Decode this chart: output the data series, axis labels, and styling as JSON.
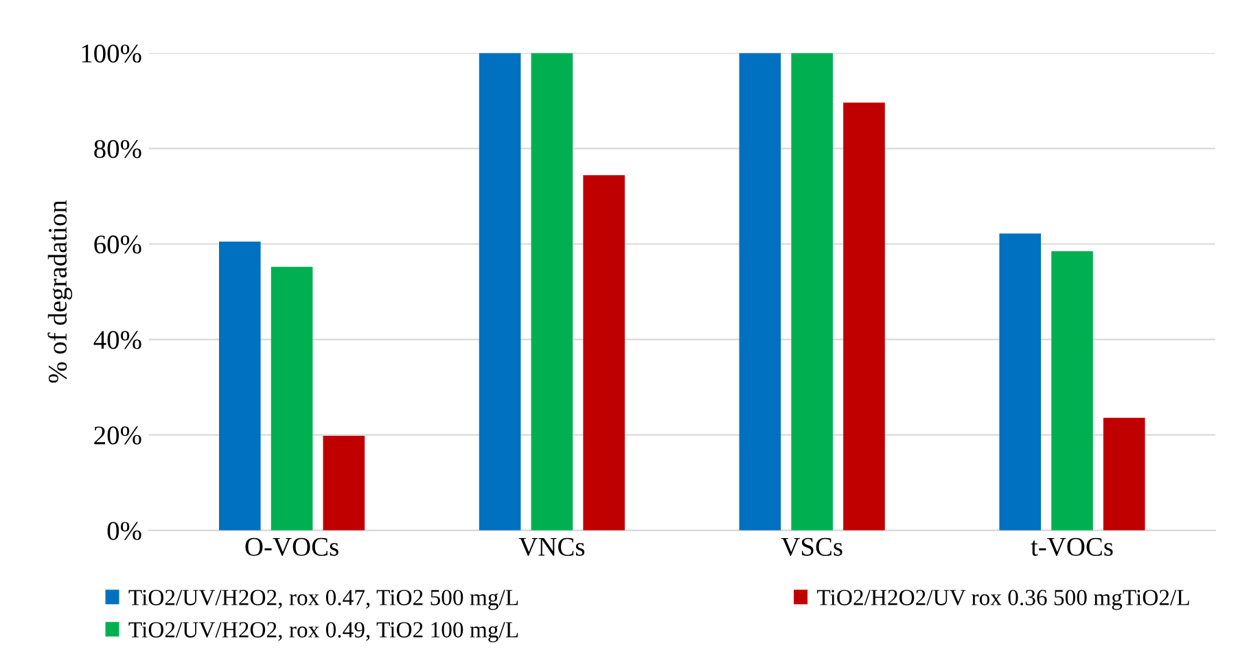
{
  "chart_data": {
    "type": "bar",
    "ylabel": "% of degradation",
    "categories": [
      "O-VOCs",
      "VNCs",
      "VSCs",
      "t-VOCs"
    ],
    "series": [
      {
        "name": "TiO2/UV/H2O2, rox 0.47, TiO2 500 mg/L",
        "color": "#0070c0",
        "values": [
          60.5,
          100,
          100,
          62.2
        ]
      },
      {
        "name": "TiO2/UV/H2O2, rox 0.49, TiO2 100 mg/L",
        "color": "#00b050",
        "values": [
          55.2,
          100,
          100,
          58.5
        ]
      },
      {
        "name": "TiO2/H2O2/UV rox 0.36 500 mgTiO2/L",
        "color": "#c00000",
        "values": [
          19.8,
          74.4,
          89.6,
          23.6
        ]
      }
    ],
    "ylim": [
      0,
      100
    ],
    "yticks": [
      {
        "value": 0,
        "label": "0%"
      },
      {
        "value": 20,
        "label": "20%"
      },
      {
        "value": 40,
        "label": "40%"
      },
      {
        "value": 60,
        "label": "60%"
      },
      {
        "value": 80,
        "label": "80%"
      },
      {
        "value": 100,
        "label": "100%"
      }
    ],
    "grid": "y",
    "legend": "bottom"
  }
}
